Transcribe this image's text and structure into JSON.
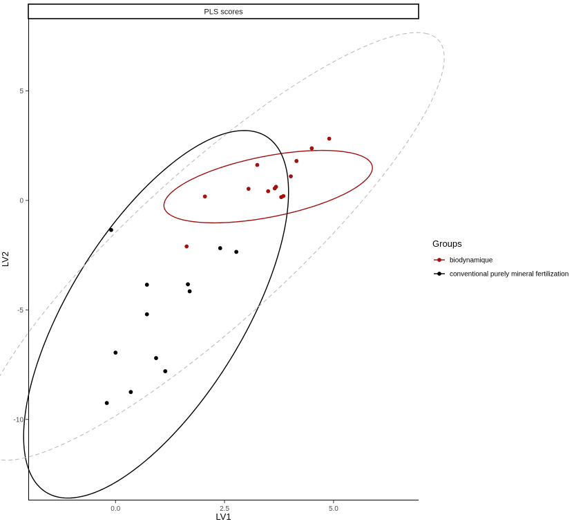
{
  "chart_data": {
    "type": "scatter",
    "title": "PLS scores",
    "xlabel": "LV1",
    "ylabel": "LV2",
    "xlim": [
      -2.0,
      6.95
    ],
    "ylim": [
      -13.7,
      8.3
    ],
    "x_ticks": [
      0.0,
      2.5,
      5.0
    ],
    "x_tick_labels": [
      "0.0",
      "2.5",
      "5.0"
    ],
    "y_ticks": [
      5,
      0,
      -5,
      -10
    ],
    "y_tick_labels": [
      "5",
      "0",
      "-5",
      "-10"
    ],
    "grid": false,
    "legend": {
      "title": "Groups",
      "position": "right",
      "entries": [
        "biodynamique",
        "conventional purely mineral fertilization"
      ]
    },
    "series": [
      {
        "name": "biodynamique",
        "color": "#a0110f",
        "points": [
          [
            1.63,
            -2.1
          ],
          [
            2.05,
            0.18
          ],
          [
            3.05,
            0.53
          ],
          [
            3.25,
            1.62
          ],
          [
            3.5,
            0.42
          ],
          [
            3.65,
            0.55
          ],
          [
            3.68,
            0.62
          ],
          [
            3.8,
            0.15
          ],
          [
            3.85,
            0.2
          ],
          [
            4.02,
            1.1
          ],
          [
            4.15,
            1.8
          ],
          [
            4.5,
            2.38
          ],
          [
            4.9,
            2.82
          ]
        ]
      },
      {
        "name": "conventional purely mineral fertilization",
        "color": "#000000",
        "points": [
          [
            -0.1,
            -1.35
          ],
          [
            0.0,
            -6.95
          ],
          [
            -0.2,
            -9.25
          ],
          [
            0.35,
            -8.75
          ],
          [
            0.72,
            -3.85
          ],
          [
            0.72,
            -5.2
          ],
          [
            0.93,
            -7.2
          ],
          [
            1.14,
            -7.8
          ],
          [
            1.66,
            -3.83
          ],
          [
            1.7,
            -4.15
          ],
          [
            2.4,
            -2.18
          ],
          [
            2.77,
            -2.35
          ]
        ]
      }
    ],
    "ellipses": [
      {
        "group": "biodynamique",
        "color": "#a0110f",
        "style": "solid",
        "center": [
          3.5,
          0.63
        ],
        "semi_axes": [
          2.6,
          1.3
        ],
        "angle_deg": 27
      },
      {
        "group": "conventional purely mineral fertilization",
        "color": "#000000",
        "style": "solid",
        "center": [
          0.93,
          -5.2
        ],
        "semi_axes": [
          8.65,
          2.2
        ],
        "angle_deg": 75.5
      },
      {
        "group": "all",
        "color": "#bdbdbd",
        "style": "dashed",
        "center": [
          2.2,
          -2.1
        ],
        "semi_axes": [
          10.9,
          2.25
        ],
        "angle_deg": 63
      }
    ]
  }
}
